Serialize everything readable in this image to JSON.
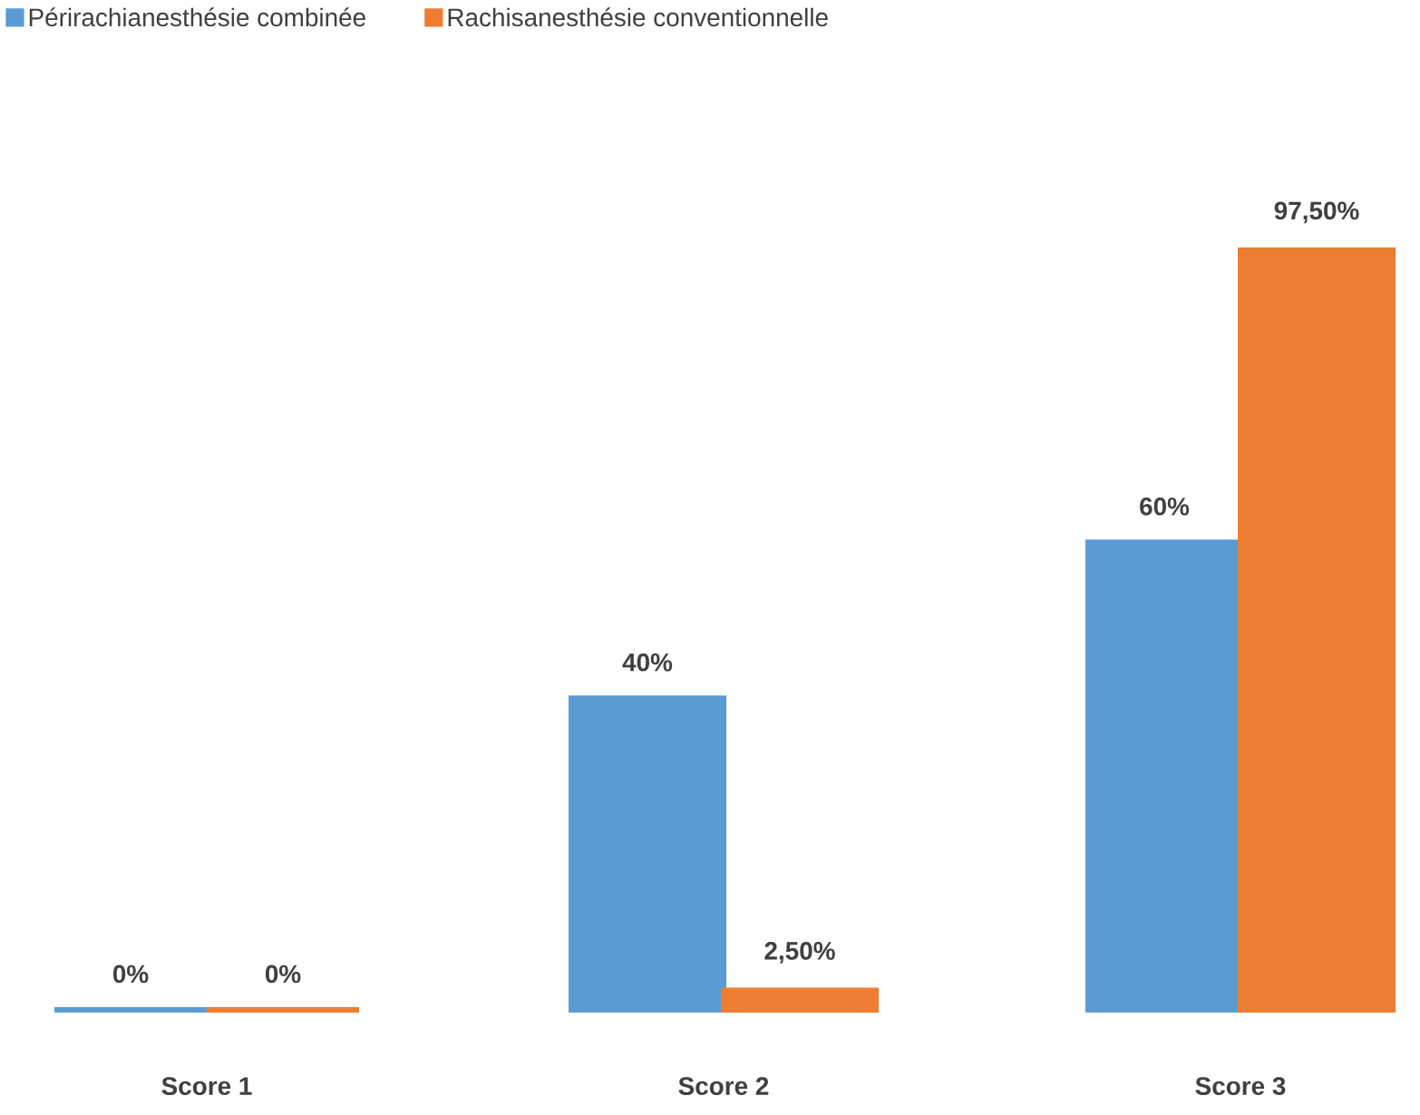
{
  "chart_data": {
    "type": "bar",
    "categories": [
      "Score 1",
      "Score 2",
      "Score 3"
    ],
    "series": [
      {
        "name": "Périrachianesthésie combinée",
        "color": "#5b9bd5",
        "values": [
          0,
          40,
          60
        ],
        "value_labels": [
          "0%",
          "40%",
          "60%"
        ]
      },
      {
        "name": "Rachisanesthésie conventionnelle",
        "color": "#ed7d31",
        "values": [
          0,
          2.5,
          97.5
        ],
        "value_labels": [
          "0%",
          "2,50%",
          "97,50%"
        ]
      }
    ],
    "legend": "top left"
  }
}
